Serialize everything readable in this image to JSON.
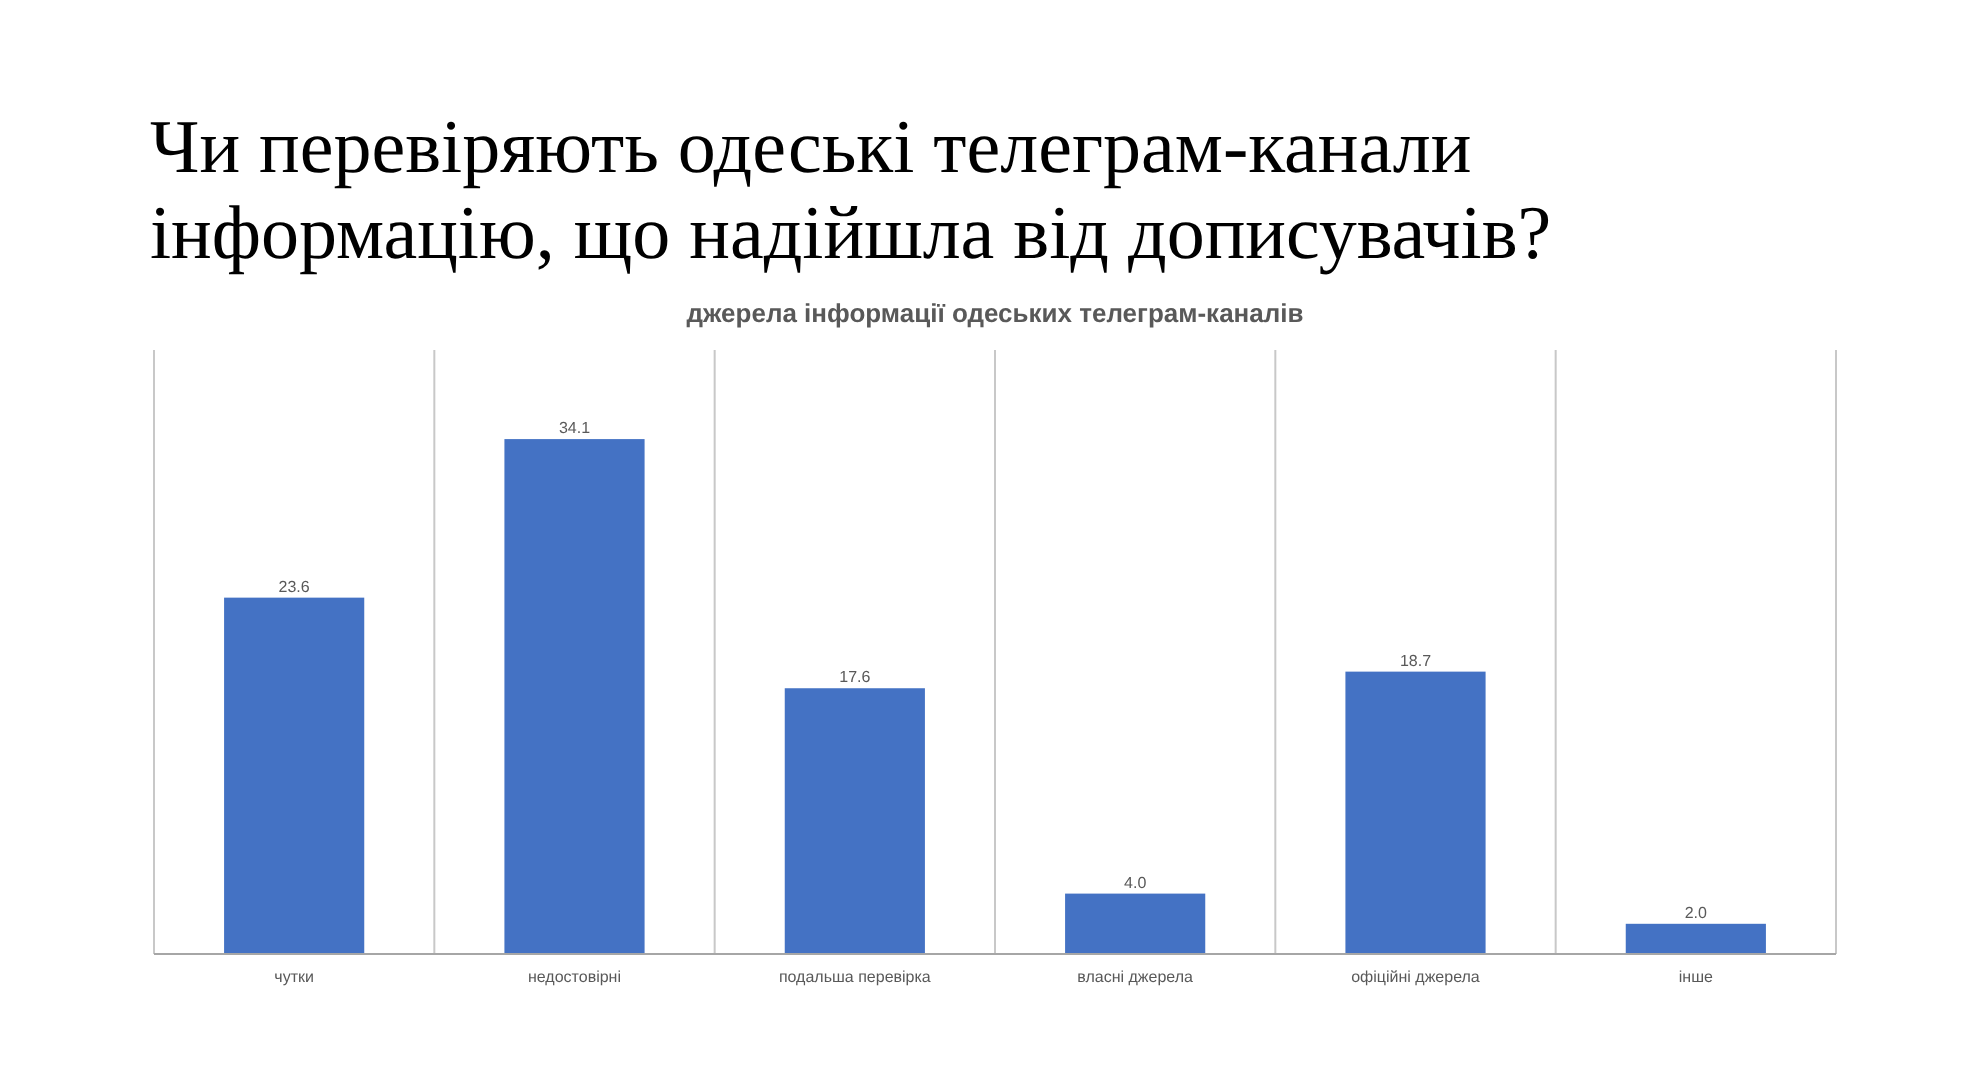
{
  "chart_data": {
    "type": "bar",
    "title": "Чи перевіряють одеські телеграм-канали інформацію, що надійшла від дописувачів?",
    "subtitle": "джерела інформації одеських телеграм-каналів",
    "categories": [
      "чутки",
      "недостовірні",
      "подальша перевірка",
      "власні джерела",
      "офіційні джерела",
      "інше"
    ],
    "values": [
      23.6,
      34.1,
      17.6,
      4.0,
      18.7,
      2.0
    ],
    "value_labels": [
      "23.6",
      "34.1",
      "17.6",
      "4.0",
      "18.7",
      "2.0"
    ],
    "color": "#4472c4",
    "ylim": [
      0,
      40
    ],
    "grid": "x",
    "tick_labels": "x"
  }
}
